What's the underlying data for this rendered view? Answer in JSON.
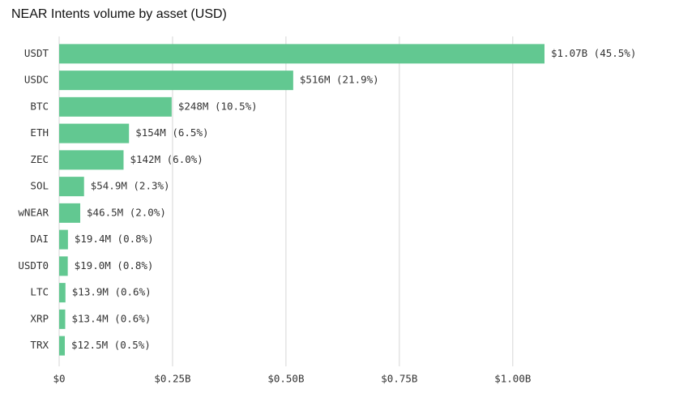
{
  "chart_data": {
    "type": "hbar",
    "title": "NEAR Intents volume by asset (USD)",
    "categories": [
      "USDT",
      "USDC",
      "BTC",
      "ETH",
      "ZEC",
      "SOL",
      "wNEAR",
      "DAI",
      "USDT0",
      "LTC",
      "XRP",
      "TRX"
    ],
    "values": [
      1070000000,
      516000000,
      248000000,
      154000000,
      142000000,
      54900000,
      46500000,
      19400000,
      19000000,
      13900000,
      13400000,
      12500000
    ],
    "value_labels": [
      "$1.07B (45.5%)",
      "$516M (21.9%)",
      "$248M (10.5%)",
      "$154M (6.5%)",
      "$142M (6.0%)",
      "$54.9M (2.3%)",
      "$46.5M (2.0%)",
      "$19.4M (0.8%)",
      "$19.0M (0.8%)",
      "$13.9M (0.6%)",
      "$13.4M (0.6%)",
      "$12.5M (0.5%)"
    ],
    "color": "#62c891",
    "xlim": [
      0,
      1070000000
    ],
    "xticks": [
      {
        "value": 0,
        "label": "$0"
      },
      {
        "value": 250000000,
        "label": "$0.25B"
      },
      {
        "value": 500000000,
        "label": "$0.50B"
      },
      {
        "value": 750000000,
        "label": "$0.75B"
      },
      {
        "value": 1000000000,
        "label": "$1.00B"
      }
    ],
    "grid": true
  }
}
